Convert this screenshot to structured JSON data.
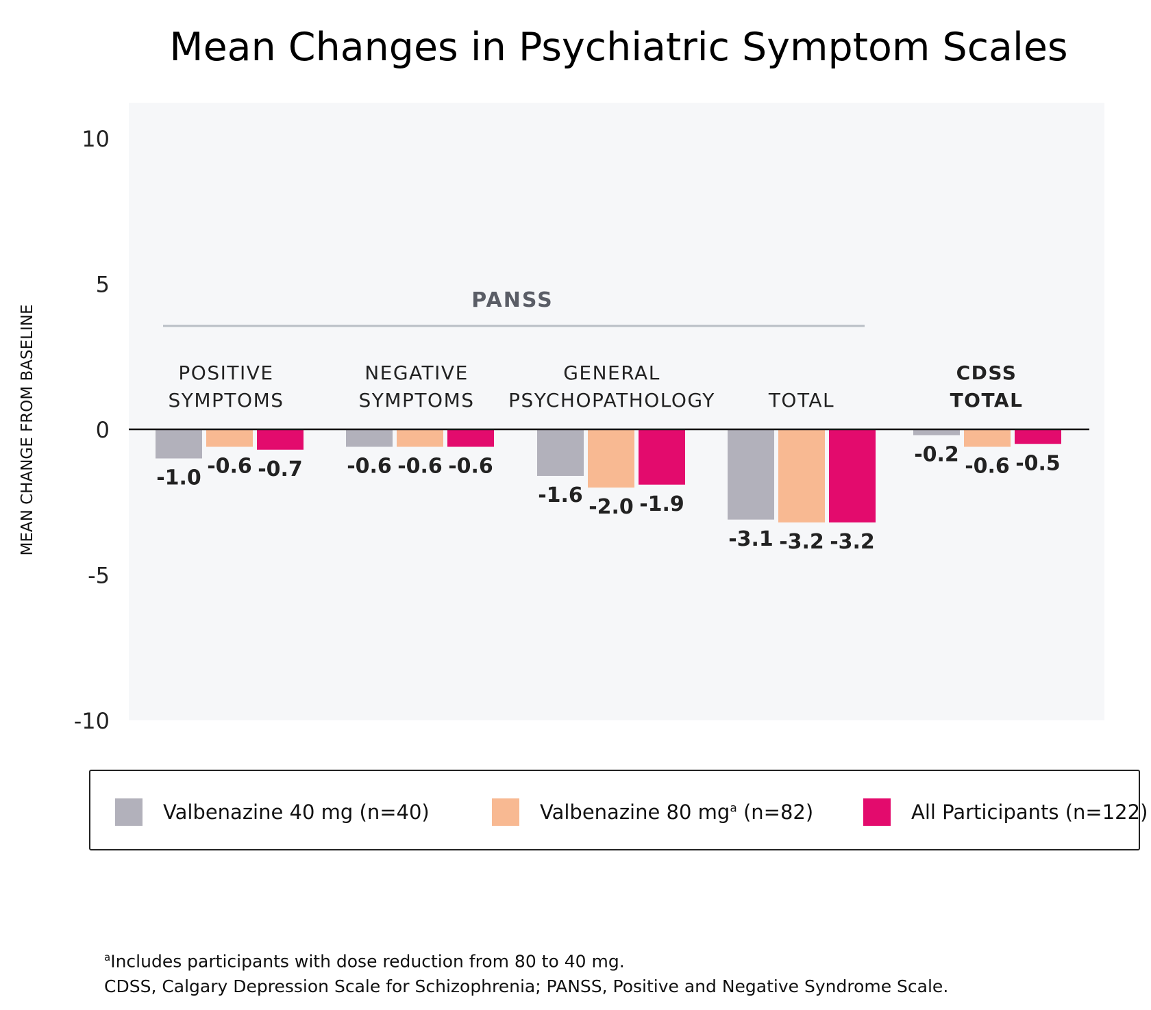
{
  "chart_data": {
    "type": "bar",
    "title": "Mean Changes in Psychiatric Symptom Scales",
    "ylabel": "MEAN CHANGE FROM BASELINE",
    "ylim": [
      -10,
      10
    ],
    "yticks": [
      10,
      5,
      0,
      -5,
      -10
    ],
    "group_header": "PANSS",
    "categories": [
      {
        "lines": [
          "POSITIVE",
          "SYMPTOMS"
        ],
        "bold": false
      },
      {
        "lines": [
          "NEGATIVE",
          "SYMPTOMS"
        ],
        "bold": false
      },
      {
        "lines": [
          "GENERAL",
          "PSYCHOPATHOLOGY"
        ],
        "bold": false
      },
      {
        "lines": [
          "TOTAL"
        ],
        "bold": false
      },
      {
        "lines": [
          "CDSS",
          "TOTAL"
        ],
        "bold": true
      }
    ],
    "series": [
      {
        "name": "Valbenazine 40 mg (n=40)",
        "color": "#b2b1bb",
        "values": [
          -1.0,
          -0.6,
          -1.6,
          -3.1,
          -0.2
        ],
        "labels": [
          "-1.0",
          "-0.6",
          "-1.6",
          "-3.1",
          "-0.2"
        ]
      },
      {
        "name": "Valbenazine 80 mg",
        "superscript": "a",
        "name_suffix": "(n=82)",
        "color": "#f8b992",
        "values": [
          -0.6,
          -0.6,
          -2.0,
          -3.2,
          -0.6
        ],
        "labels": [
          "-0.6",
          "-0.6",
          "-2.0",
          "-3.2",
          "-0.6"
        ]
      },
      {
        "name": "All Participants (n=122)",
        "color": "#e30b6d",
        "values": [
          -0.7,
          -0.6,
          -1.9,
          -3.2,
          -0.5
        ],
        "labels": [
          "-0.7",
          "-0.6",
          "-1.9",
          "-3.2",
          "-0.5"
        ]
      }
    ],
    "grid": false,
    "legend_position": "bottom"
  },
  "legend": {
    "item1": "Valbenazine 40 mg (n=40)",
    "item2_main": "Valbenazine 80 mg",
    "item2_sup": "a",
    "item2_rest": " (n=82)",
    "item3": "All Participants (n=122)"
  },
  "footnotes": {
    "line1_sup": "a",
    "line1": "Includes participants with dose reduction from 80 to 40 mg.",
    "line2": "CDSS, Calgary Depression Scale for Schizophrenia; PANSS, Positive and Negative Syndrome Scale."
  },
  "colors": {
    "plot_background": "#f6f7f9",
    "panss_line": "#b9bfc6",
    "panss_text": "#5a5d66"
  }
}
